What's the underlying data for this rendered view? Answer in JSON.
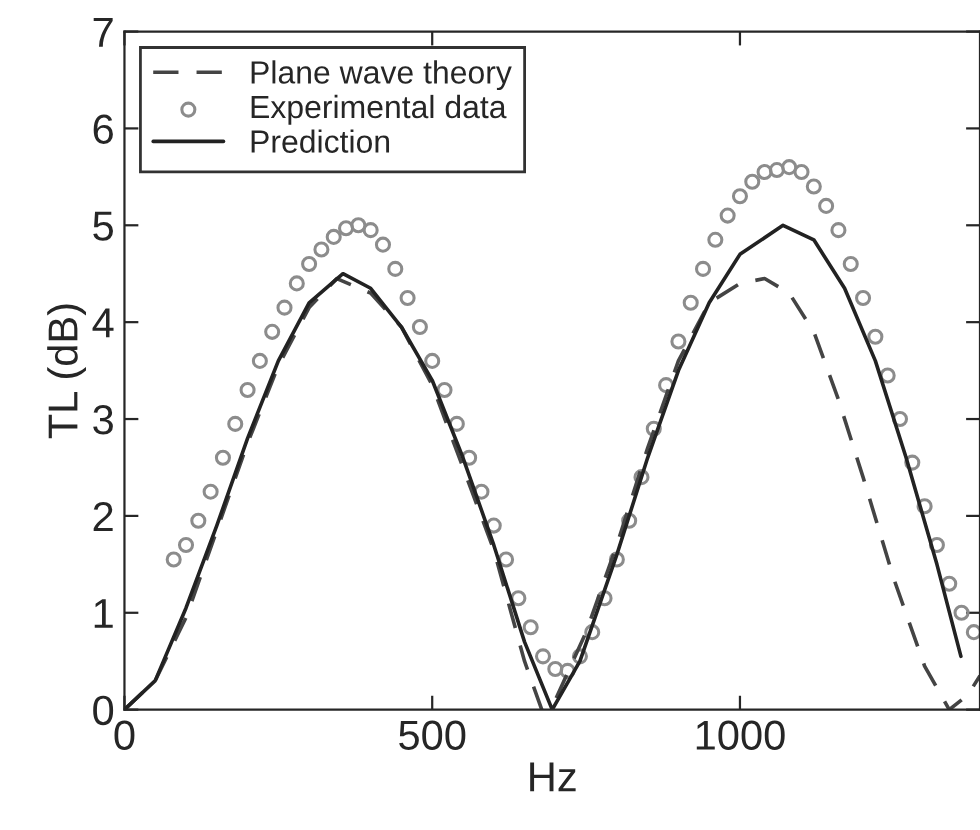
{
  "chart_data": {
    "type": "line",
    "xlabel": "Hz",
    "ylabel": "TL (dB)",
    "xlim": [
      0,
      1390
    ],
    "ylim": [
      0,
      7
    ],
    "xticks": [
      0,
      500,
      1000
    ],
    "yticks": [
      0,
      1,
      2,
      3,
      4,
      5,
      6,
      7
    ],
    "grid": false,
    "legend": "top left",
    "series": [
      {
        "name": "Plane wave theory",
        "color": "#444444",
        "line_style": "dashed",
        "x": [
          0,
          50,
          100,
          150,
          200,
          250,
          300,
          345,
          400,
          450,
          500,
          550,
          600,
          650,
          678,
          700,
          750,
          800,
          850,
          900,
          950,
          1000,
          1040,
          1080,
          1120,
          1160,
          1200,
          1250,
          1300,
          1340,
          1370,
          1390
        ],
        "values": [
          0,
          0.3,
          0.95,
          1.85,
          2.75,
          3.55,
          4.15,
          4.45,
          4.3,
          3.95,
          3.35,
          2.5,
          1.65,
          0.5,
          0,
          0.1,
          0.8,
          1.7,
          2.7,
          3.6,
          4.2,
          4.4,
          4.45,
          4.3,
          3.9,
          3.2,
          2.4,
          1.35,
          0.45,
          0,
          0.15,
          0.35
        ]
      },
      {
        "name": "Experimental data",
        "type": "scatter",
        "color": "#8c8c8c",
        "marker": "circle",
        "x": [
          80,
          100,
          120,
          140,
          160,
          180,
          200,
          220,
          240,
          260,
          280,
          300,
          320,
          340,
          360,
          380,
          400,
          420,
          440,
          460,
          480,
          500,
          520,
          540,
          560,
          580,
          600,
          620,
          640,
          660,
          680,
          700,
          720,
          740,
          760,
          780,
          800,
          820,
          840,
          860,
          880,
          900,
          920,
          940,
          960,
          980,
          1000,
          1020,
          1040,
          1060,
          1080,
          1100,
          1120,
          1140,
          1160,
          1180,
          1200,
          1220,
          1240,
          1260,
          1280,
          1300,
          1320,
          1340,
          1360,
          1380
        ],
        "values": [
          1.55,
          1.7,
          1.95,
          2.25,
          2.6,
          2.95,
          3.3,
          3.6,
          3.9,
          4.15,
          4.4,
          4.6,
          4.75,
          4.88,
          4.97,
          5.0,
          4.95,
          4.8,
          4.55,
          4.25,
          3.95,
          3.6,
          3.3,
          2.95,
          2.6,
          2.25,
          1.9,
          1.55,
          1.15,
          0.85,
          0.55,
          0.42,
          0.4,
          0.55,
          0.8,
          1.15,
          1.55,
          1.95,
          2.4,
          2.9,
          3.35,
          3.8,
          4.2,
          4.55,
          4.85,
          5.1,
          5.3,
          5.45,
          5.55,
          5.57,
          5.6,
          5.55,
          5.4,
          5.2,
          4.95,
          4.6,
          4.25,
          3.85,
          3.45,
          3.0,
          2.55,
          2.1,
          1.7,
          1.3,
          1.0,
          0.8
        ]
      },
      {
        "name": "Prediction",
        "color": "#222222",
        "line_style": "solid",
        "x": [
          0,
          50,
          100,
          150,
          200,
          250,
          300,
          355,
          400,
          450,
          500,
          550,
          600,
          650,
          695,
          740,
          800,
          850,
          900,
          950,
          1000,
          1070,
          1120,
          1170,
          1220,
          1270,
          1320,
          1359
        ],
        "values": [
          0,
          0.3,
          1.05,
          1.9,
          2.8,
          3.6,
          4.2,
          4.5,
          4.35,
          3.95,
          3.4,
          2.6,
          1.7,
          0.7,
          0,
          0.5,
          1.6,
          2.6,
          3.5,
          4.2,
          4.7,
          5.0,
          4.85,
          4.35,
          3.6,
          2.6,
          1.5,
          0.55
        ]
      }
    ]
  }
}
